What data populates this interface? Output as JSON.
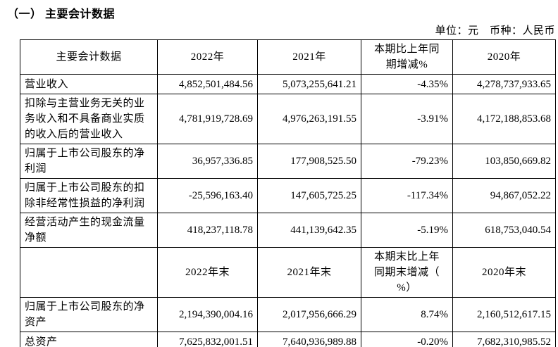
{
  "title": "（一） 主要会计数据",
  "unit_line": "单位：元　币种：人民币",
  "table": {
    "header1": [
      "主要会计数据",
      "2022年",
      "2021年",
      "本期比上年同\n期增减%",
      "2020年"
    ],
    "rows1": [
      {
        "label": "营业收入",
        "y2022": "4,852,501,484.56",
        "y2021": "5,073,255,641.21",
        "pct": "-4.35%",
        "y2020": "4,278,737,933.65"
      },
      {
        "label": "扣除与主营业务无关的业务收入和不具备商业实质的收入后的营业收入",
        "y2022": "4,781,919,728.69",
        "y2021": "4,976,263,191.55",
        "pct": "-3.91%",
        "y2020": "4,172,188,853.68"
      },
      {
        "label": "归属于上市公司股东的净利润",
        "y2022": "36,957,336.85",
        "y2021": "177,908,525.50",
        "pct": "-79.23%",
        "y2020": "103,850,669.82"
      },
      {
        "label": "归属于上市公司股东的扣除非经常性损益的净利润",
        "y2022": "-25,596,163.40",
        "y2021": "147,605,725.25",
        "pct": "-117.34%",
        "y2020": "94,867,052.22"
      },
      {
        "label": "经营活动产生的现金流量净额",
        "y2022": "418,237,118.78",
        "y2021": "441,139,642.35",
        "pct": "-5.19%",
        "y2020": "618,753,040.54"
      }
    ],
    "header2": [
      "",
      "2022年末",
      "2021年末",
      "本期末比上年\n同期末增减（\n%）",
      "2020年末"
    ],
    "rows2": [
      {
        "label": "归属于上市公司股东的净资产",
        "y2022": "2,194,390,004.16",
        "y2021": "2,017,956,666.29",
        "pct": "8.74%",
        "y2020": "2,160,512,617.15"
      },
      {
        "label": "总资产",
        "y2022": "7,625,832,001.51",
        "y2021": "7,640,936,989.88",
        "pct": "-0.20%",
        "y2020": "7,682,310,985.52"
      }
    ]
  }
}
